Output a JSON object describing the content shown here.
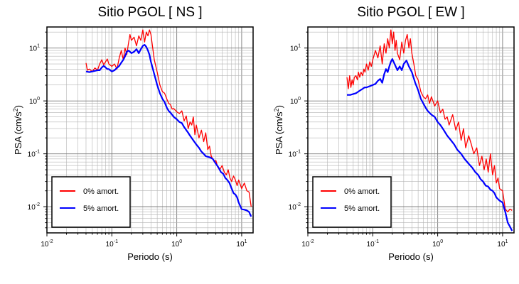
{
  "chart_data": [
    {
      "type": "line",
      "title": "Sitio PGOL [ NS ]",
      "xlabel": "Periodo (s)",
      "ylabel_text": "PSA (cm/s",
      "ylabel_sup": "2",
      "ylabel_close": ")",
      "xscale": "log",
      "yscale": "log",
      "xlim": [
        0.01,
        15
      ],
      "ylim": [
        0.0032,
        25
      ],
      "grid": true,
      "legend_position": "bottom-left",
      "x_ticks": [
        {
          "base": "10",
          "exp": "-2",
          "value": 0.01
        },
        {
          "base": "10",
          "exp": "-1",
          "value": 0.1
        },
        {
          "base": "10",
          "exp": "0",
          "value": 1
        },
        {
          "base": "10",
          "exp": "1",
          "value": 10
        }
      ],
      "y_ticks": [
        {
          "base": "10",
          "exp": "-2",
          "value": 0.01
        },
        {
          "base": "10",
          "exp": "-1",
          "value": 0.1
        },
        {
          "base": "10",
          "exp": "0",
          "value": 1
        },
        {
          "base": "10",
          "exp": "1",
          "value": 10
        }
      ],
      "series": [
        {
          "name": "0% amort.",
          "color": "#ff0000",
          "x": [
            0.04,
            0.042,
            0.045,
            0.05,
            0.055,
            0.06,
            0.065,
            0.07,
            0.075,
            0.08,
            0.085,
            0.09,
            0.1,
            0.11,
            0.12,
            0.13,
            0.14,
            0.15,
            0.16,
            0.17,
            0.18,
            0.19,
            0.2,
            0.22,
            0.24,
            0.26,
            0.28,
            0.3,
            0.32,
            0.34,
            0.36,
            0.38,
            0.4,
            0.45,
            0.5,
            0.55,
            0.6,
            0.65,
            0.7,
            0.75,
            0.8,
            0.85,
            0.9,
            1.0,
            1.1,
            1.2,
            1.3,
            1.4,
            1.5,
            1.6,
            1.7,
            1.8,
            1.9,
            2.0,
            2.2,
            2.4,
            2.6,
            2.8,
            3.0,
            3.2,
            3.4,
            3.6,
            3.8,
            4.0,
            4.3,
            4.6,
            5.0,
            5.4,
            5.8,
            6.2,
            6.6,
            7.0,
            7.5,
            8.0,
            8.5,
            9.0,
            10.0,
            11.0,
            12.0,
            13.0,
            14.0
          ],
          "y": [
            5.2,
            3.8,
            4.0,
            3.6,
            4.2,
            3.8,
            5.0,
            6.0,
            4.8,
            5.5,
            6.2,
            5.0,
            4.5,
            5.0,
            4.0,
            6.5,
            9.0,
            6.0,
            10.0,
            7.5,
            12.0,
            18.0,
            14.0,
            16.0,
            11.0,
            17.0,
            14.0,
            22.0,
            13.0,
            20.0,
            17.0,
            22.0,
            18.0,
            6.0,
            3.5,
            2.0,
            1.5,
            1.4,
            1.1,
            0.9,
            0.85,
            0.7,
            0.72,
            0.62,
            0.58,
            0.65,
            0.42,
            0.52,
            0.3,
            0.4,
            0.35,
            0.5,
            0.23,
            0.35,
            0.2,
            0.28,
            0.17,
            0.25,
            0.12,
            0.14,
            0.09,
            0.08,
            0.07,
            0.075,
            0.055,
            0.05,
            0.06,
            0.045,
            0.04,
            0.05,
            0.035,
            0.03,
            0.038,
            0.032,
            0.025,
            0.032,
            0.022,
            0.028,
            0.02,
            0.019,
            0.01
          ]
        },
        {
          "name": "5% amort.",
          "color": "#0000ff",
          "x": [
            0.04,
            0.045,
            0.05,
            0.055,
            0.06,
            0.065,
            0.07,
            0.075,
            0.08,
            0.085,
            0.09,
            0.1,
            0.11,
            0.12,
            0.13,
            0.14,
            0.15,
            0.16,
            0.17,
            0.18,
            0.19,
            0.2,
            0.22,
            0.24,
            0.26,
            0.28,
            0.3,
            0.32,
            0.34,
            0.36,
            0.38,
            0.4,
            0.45,
            0.5,
            0.55,
            0.6,
            0.65,
            0.7,
            0.75,
            0.8,
            0.9,
            1.0,
            1.1,
            1.2,
            1.3,
            1.4,
            1.5,
            1.6,
            1.8,
            2.0,
            2.2,
            2.4,
            2.6,
            2.8,
            3.0,
            3.3,
            3.6,
            4.0,
            4.4,
            4.8,
            5.2,
            5.6,
            6.0,
            6.5,
            7.0,
            7.5,
            8.0,
            8.5,
            9.0,
            10.0,
            11.0,
            12.0,
            13.0,
            14.0
          ],
          "y": [
            3.6,
            3.5,
            3.6,
            3.7,
            3.8,
            3.8,
            4.3,
            4.6,
            4.3,
            4.0,
            4.0,
            3.6,
            3.8,
            4.2,
            4.6,
            5.3,
            6.0,
            7.0,
            8.5,
            9.0,
            8.5,
            8.0,
            8.5,
            9.5,
            8.0,
            9.5,
            11.0,
            11.5,
            10.5,
            9.0,
            7.5,
            5.5,
            3.2,
            2.0,
            1.4,
            1.1,
            0.95,
            0.75,
            0.65,
            0.6,
            0.5,
            0.45,
            0.4,
            0.38,
            0.32,
            0.28,
            0.25,
            0.22,
            0.18,
            0.15,
            0.13,
            0.11,
            0.1,
            0.09,
            0.088,
            0.085,
            0.08,
            0.065,
            0.055,
            0.045,
            0.042,
            0.035,
            0.032,
            0.028,
            0.022,
            0.018,
            0.017,
            0.015,
            0.012,
            0.009,
            0.0088,
            0.0085,
            0.008,
            0.0065
          ]
        }
      ]
    },
    {
      "type": "line",
      "title": "Sitio PGOL [ EW ]",
      "xlabel": "Periodo (s)",
      "ylabel_text": "PSA (cm/s",
      "ylabel_sup": "2",
      "ylabel_close": ")",
      "xscale": "log",
      "yscale": "log",
      "xlim": [
        0.01,
        15
      ],
      "ylim": [
        0.0032,
        25
      ],
      "grid": true,
      "legend_position": "bottom-left",
      "x_ticks": [
        {
          "base": "10",
          "exp": "-2",
          "value": 0.01
        },
        {
          "base": "10",
          "exp": "-1",
          "value": 0.1
        },
        {
          "base": "10",
          "exp": "0",
          "value": 1
        },
        {
          "base": "10",
          "exp": "1",
          "value": 10
        }
      ],
      "y_ticks": [
        {
          "base": "10",
          "exp": "-2",
          "value": 0.01
        },
        {
          "base": "10",
          "exp": "-1",
          "value": 0.1
        },
        {
          "base": "10",
          "exp": "0",
          "value": 1
        },
        {
          "base": "10",
          "exp": "1",
          "value": 10
        }
      ],
      "series": [
        {
          "name": "0% amort.",
          "color": "#ff0000",
          "x": [
            0.04,
            0.042,
            0.044,
            0.046,
            0.048,
            0.05,
            0.052,
            0.055,
            0.058,
            0.06,
            0.063,
            0.066,
            0.07,
            0.073,
            0.076,
            0.08,
            0.085,
            0.09,
            0.095,
            0.1,
            0.11,
            0.12,
            0.13,
            0.14,
            0.15,
            0.16,
            0.17,
            0.18,
            0.19,
            0.2,
            0.21,
            0.22,
            0.23,
            0.24,
            0.26,
            0.28,
            0.3,
            0.32,
            0.34,
            0.36,
            0.38,
            0.4,
            0.43,
            0.46,
            0.5,
            0.55,
            0.6,
            0.65,
            0.7,
            0.75,
            0.8,
            0.9,
            1.0,
            1.1,
            1.2,
            1.3,
            1.4,
            1.5,
            1.7,
            1.9,
            2.1,
            2.3,
            2.5,
            2.7,
            3.0,
            3.3,
            3.6,
            4.0,
            4.4,
            4.8,
            5.2,
            5.6,
            6.0,
            6.5,
            7.0,
            7.5,
            8.0,
            8.5,
            9.0,
            10.0,
            11.0,
            12.0,
            13.0,
            14.0
          ],
          "y": [
            2.8,
            1.7,
            3.0,
            1.8,
            2.5,
            2.0,
            2.8,
            3.0,
            2.5,
            3.5,
            2.8,
            3.5,
            3.0,
            4.0,
            3.5,
            5.0,
            3.8,
            5.5,
            4.5,
            6.0,
            9.0,
            6.5,
            11.0,
            5.0,
            12.0,
            8.0,
            15.0,
            10.0,
            22.0,
            12.0,
            20.0,
            9.0,
            14.0,
            8.0,
            6.0,
            13.0,
            8.0,
            14.0,
            18.0,
            10.0,
            15.0,
            8.0,
            5.0,
            3.0,
            2.5,
            1.5,
            1.2,
            1.1,
            1.3,
            0.9,
            1.2,
            0.8,
            1.0,
            0.6,
            0.7,
            0.45,
            0.5,
            0.35,
            0.55,
            0.28,
            0.4,
            0.18,
            0.3,
            0.13,
            0.22,
            0.15,
            0.1,
            0.13,
            0.06,
            0.09,
            0.05,
            0.08,
            0.045,
            0.1,
            0.04,
            0.06,
            0.028,
            0.035,
            0.022,
            0.02,
            0.009,
            0.008,
            0.009,
            0.0085
          ]
        },
        {
          "name": "5% amort.",
          "color": "#0000ff",
          "x": [
            0.04,
            0.045,
            0.05,
            0.055,
            0.06,
            0.065,
            0.07,
            0.075,
            0.08,
            0.09,
            0.1,
            0.11,
            0.12,
            0.13,
            0.14,
            0.15,
            0.16,
            0.17,
            0.18,
            0.19,
            0.2,
            0.22,
            0.24,
            0.26,
            0.28,
            0.3,
            0.33,
            0.36,
            0.4,
            0.45,
            0.5,
            0.55,
            0.6,
            0.65,
            0.7,
            0.8,
            0.9,
            1.0,
            1.1,
            1.2,
            1.4,
            1.6,
            1.8,
            2.0,
            2.3,
            2.6,
            3.0,
            3.4,
            3.8,
            4.2,
            4.6,
            5.0,
            5.5,
            6.0,
            6.5,
            7.0,
            7.5,
            8.0,
            9.0,
            10.0,
            11.0,
            12.0,
            13.0,
            14.0
          ],
          "y": [
            1.3,
            1.3,
            1.35,
            1.4,
            1.5,
            1.6,
            1.7,
            1.8,
            1.8,
            1.9,
            2.0,
            2.1,
            2.4,
            2.6,
            2.2,
            3.2,
            4.0,
            3.5,
            4.5,
            5.5,
            6.2,
            4.8,
            3.8,
            4.5,
            3.8,
            5.0,
            5.8,
            4.5,
            3.5,
            2.2,
            1.6,
            1.1,
            0.9,
            0.75,
            0.65,
            0.55,
            0.5,
            0.4,
            0.35,
            0.3,
            0.22,
            0.18,
            0.15,
            0.12,
            0.1,
            0.08,
            0.065,
            0.055,
            0.045,
            0.04,
            0.033,
            0.03,
            0.025,
            0.024,
            0.021,
            0.02,
            0.018,
            0.015,
            0.013,
            0.012,
            0.008,
            0.005,
            0.0042,
            0.0035
          ]
        }
      ]
    }
  ]
}
